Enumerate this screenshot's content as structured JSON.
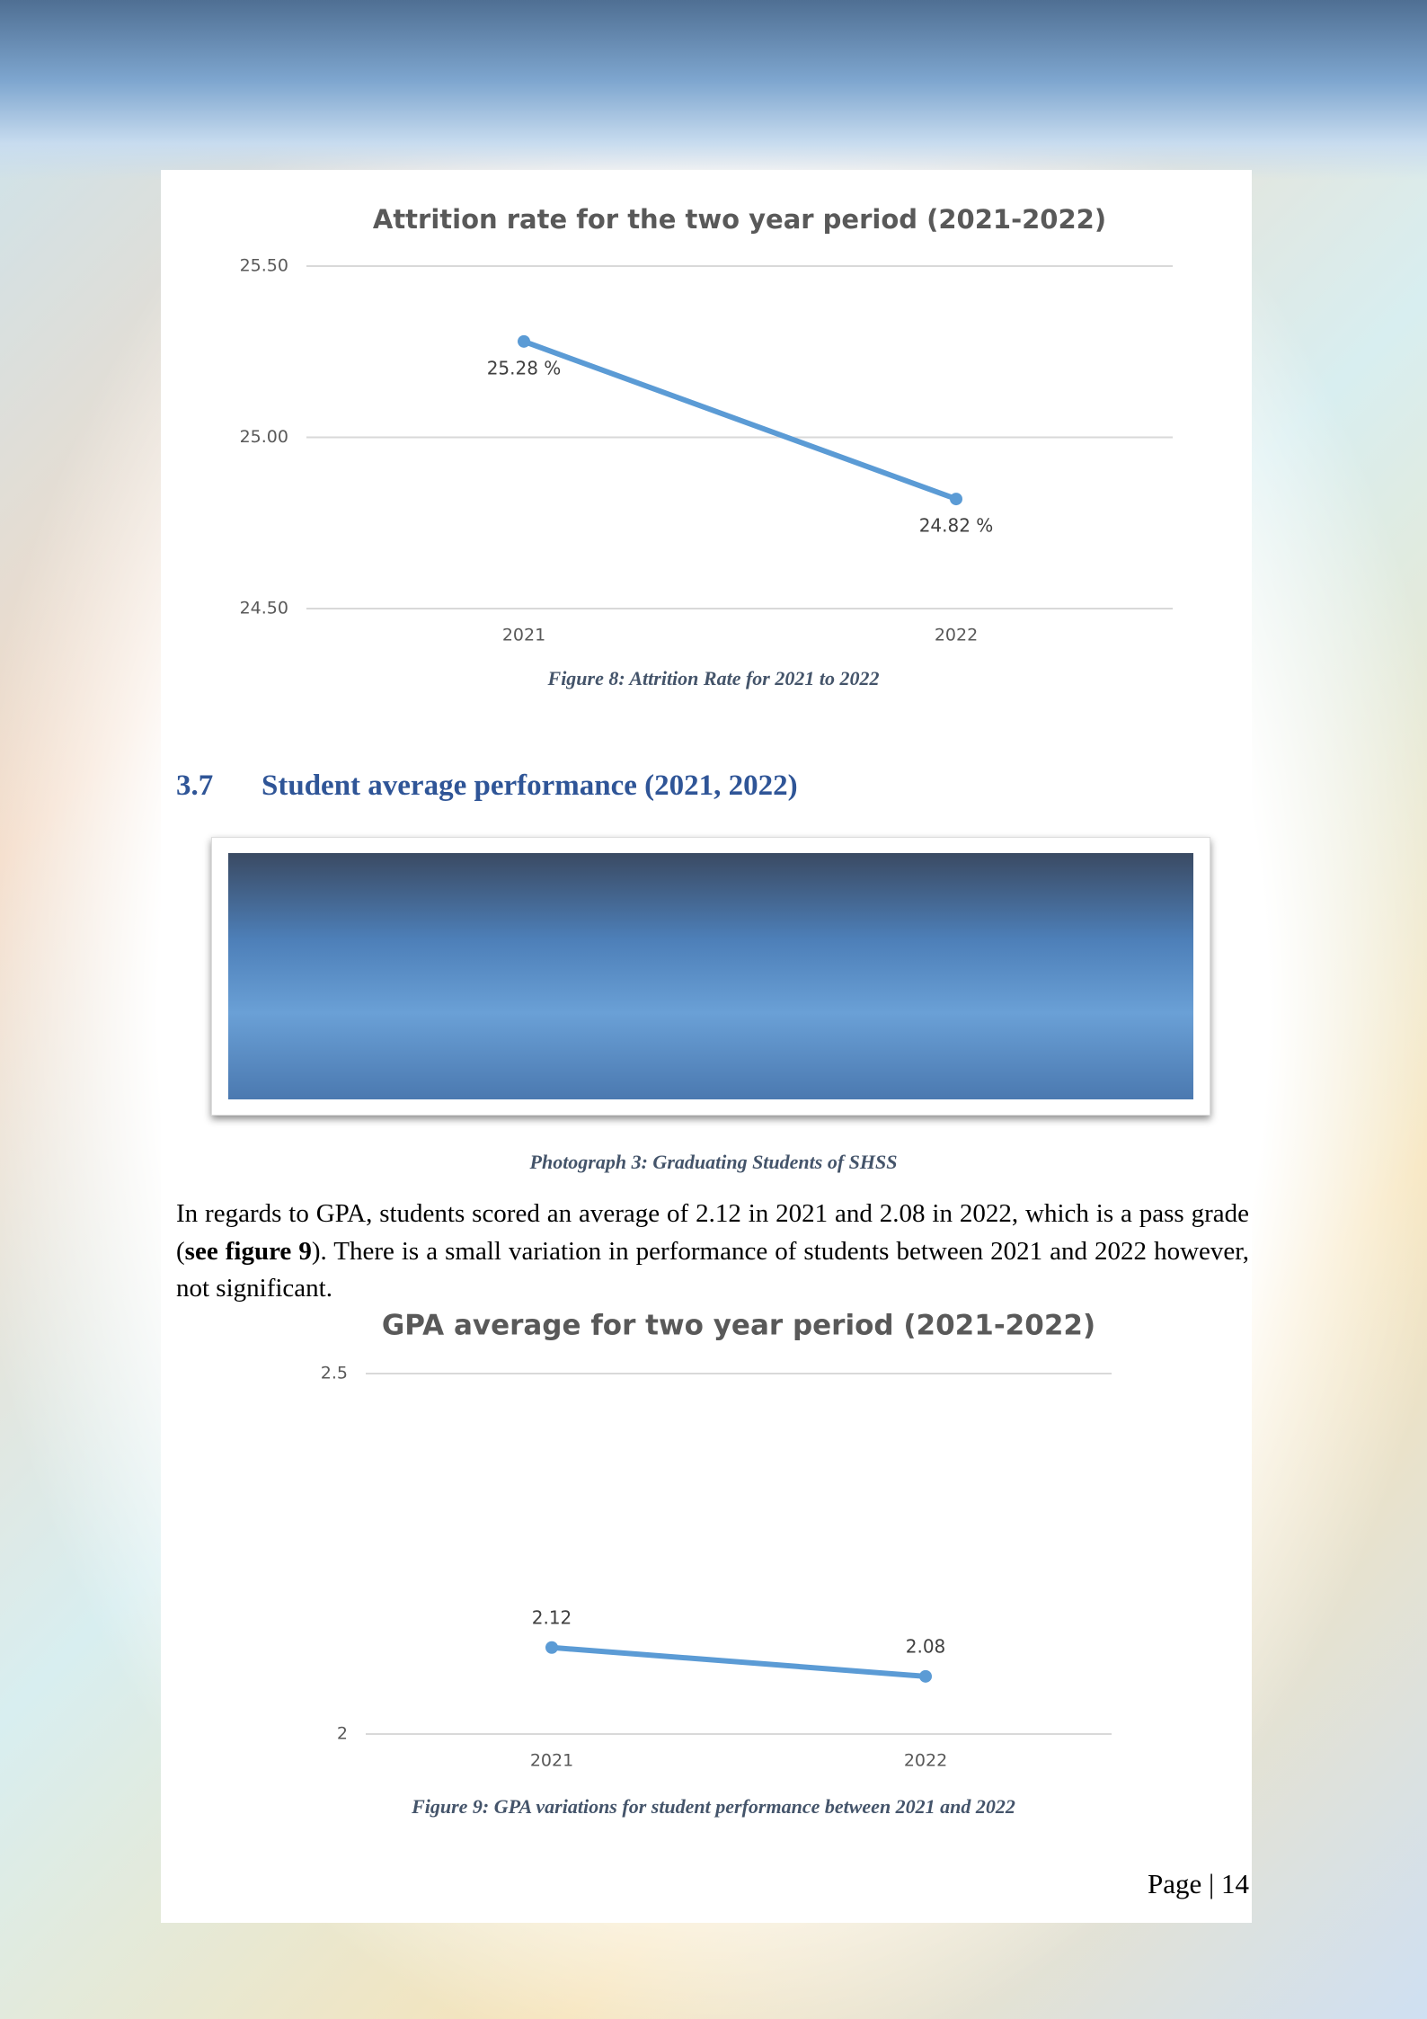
{
  "chart_data": [
    {
      "type": "line",
      "title": "Attrition rate for the two year period (2021-2022)",
      "categories": [
        "2021",
        "2022"
      ],
      "values": [
        25.28,
        24.82
      ],
      "value_labels": [
        "25.28 %",
        "24.82 %"
      ],
      "color": "#5b9bd5",
      "ylim": [
        24.5,
        25.5
      ],
      "yticks": [
        {
          "value": 24.5,
          "label": "24.50"
        },
        {
          "value": 25,
          "label": "25.00"
        },
        {
          "value": 25.5,
          "label": "25.50"
        }
      ],
      "grid": true
    },
    {
      "type": "line",
      "title": "GPA average for two year period (2021-2022)",
      "categories": [
        "2021",
        "2022"
      ],
      "values": [
        2.12,
        2.08
      ],
      "color": "#5b9bd5",
      "ylim": [
        2,
        2.5
      ],
      "yticks": [
        2,
        2.5
      ],
      "grid": true
    }
  ],
  "document": {
    "figure8_caption": "Figure 8: Attrition Rate for 2021 to 2022",
    "section_number": "3.7",
    "section_title": "Student average performance (2021, 2022)",
    "photo_caption": "Photograph 3: Graduating Students of SHSS",
    "paragraph": [
      "In regards to GPA, students scored an average of 2.12 in 2021 and 2.08 in 2022, which is a pass grade (",
      "see figure 9",
      "). There is a small variation in performance of students between 2021 and 2022 however, not significant."
    ],
    "figure9_caption": "Figure 9: GPA variations for student performance between 2021 and 2022",
    "page_number": "Page | 14"
  }
}
